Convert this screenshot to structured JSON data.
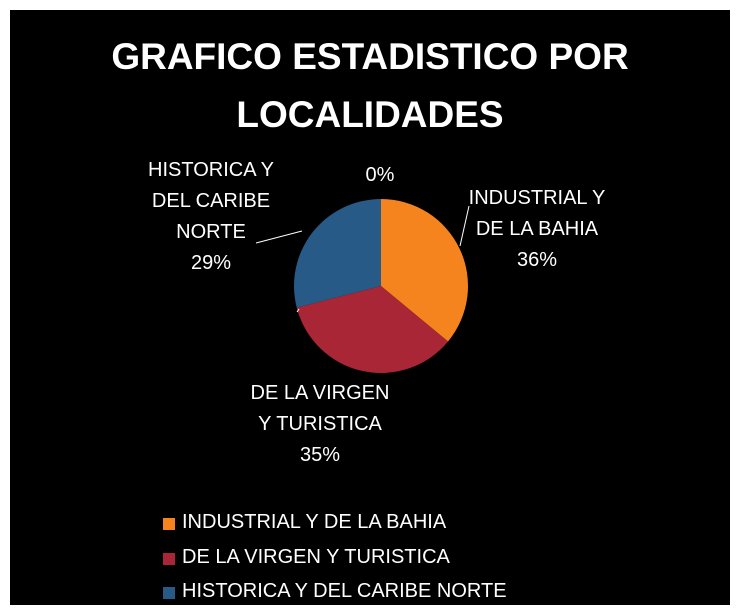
{
  "chart_data": {
    "type": "pie",
    "title": "GRAFICO ESTADISTICO POR LOCALIDADES",
    "categories": [
      "INDUSTRIAL Y DE LA BAHIA",
      "DE LA VIRGEN Y TURISTICA",
      "HISTORICA Y DEL CARIBE NORTE",
      null
    ],
    "values": [
      36,
      35,
      29,
      0
    ],
    "value_labels": [
      "36%",
      "35%",
      "29%",
      "0%"
    ],
    "colors": [
      "#f5841f",
      "#a82636",
      "#275a86",
      "#7f9a3c"
    ],
    "legend": "bottom"
  }
}
